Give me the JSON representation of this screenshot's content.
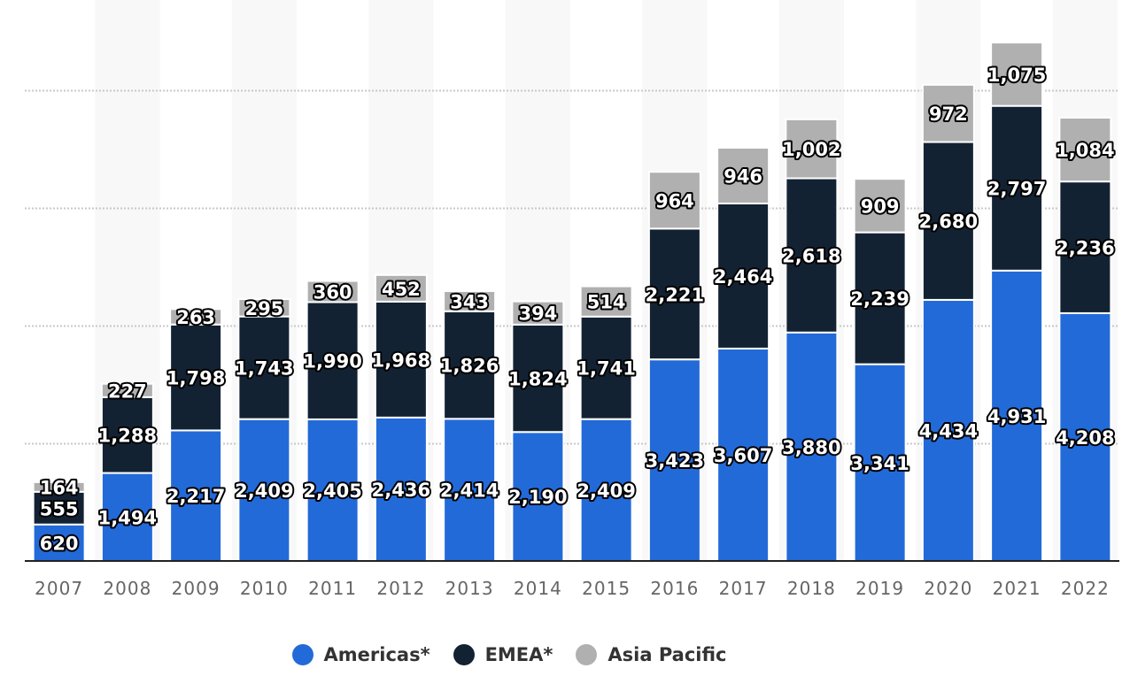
{
  "chart_data": {
    "type": "bar",
    "stacked": true,
    "title": "",
    "xlabel": "",
    "ylabel": "",
    "ylim": [
      0,
      9000
    ],
    "grid": true,
    "gridlines": [
      2000,
      4000,
      6000,
      8000
    ],
    "y_tick_labels_visible": false,
    "legend_position": "bottom-center",
    "categories": [
      "2007",
      "2008",
      "2009",
      "2010",
      "2011",
      "2012",
      "2013",
      "2014",
      "2015",
      "2016",
      "2017",
      "2018",
      "2019",
      "2020",
      "2021",
      "2022"
    ],
    "series": [
      {
        "name": "Americas*",
        "color": "#236ad9",
        "values": [
          620,
          1494,
          2217,
          2409,
          2405,
          2436,
          2414,
          2190,
          2409,
          3423,
          3607,
          3880,
          3341,
          4434,
          4931,
          4208
        ],
        "labels": [
          "620",
          "1,494",
          "2,217",
          "2,409",
          "2,405",
          "2,436",
          "2,414",
          "2,190",
          "2,409",
          "3,423",
          "3,607",
          "3,880",
          "3,341",
          "4,434",
          "4,931",
          "4,208"
        ]
      },
      {
        "name": "EMEA*",
        "color": "#132233",
        "values": [
          555,
          1288,
          1798,
          1743,
          1990,
          1968,
          1826,
          1824,
          1741,
          2221,
          2464,
          2618,
          2239,
          2680,
          2797,
          2236
        ],
        "labels": [
          "555",
          "1,288",
          "1,798",
          "1,743",
          "1,990",
          "1,968",
          "1,826",
          "1,824",
          "1,741",
          "2,221",
          "2,464",
          "2,618",
          "2,239",
          "2,680",
          "2,797",
          "2,236"
        ]
      },
      {
        "name": "Asia Pacific",
        "color": "#b0b0b0",
        "values": [
          164,
          227,
          263,
          295,
          360,
          452,
          343,
          394,
          514,
          964,
          946,
          1002,
          909,
          972,
          1075,
          1084
        ],
        "labels": [
          "164",
          "227",
          "263",
          "295",
          "360",
          "452",
          "343",
          "394",
          "514",
          "964",
          "946",
          "1,002",
          "909",
          "972",
          "1,075",
          "1,084"
        ]
      }
    ]
  },
  "legend": {
    "items": [
      {
        "label": "Americas*",
        "color": "#236ad9"
      },
      {
        "label": "EMEA*",
        "color": "#132233"
      },
      {
        "label": "Asia Pacific",
        "color": "#b0b0b0"
      }
    ]
  }
}
